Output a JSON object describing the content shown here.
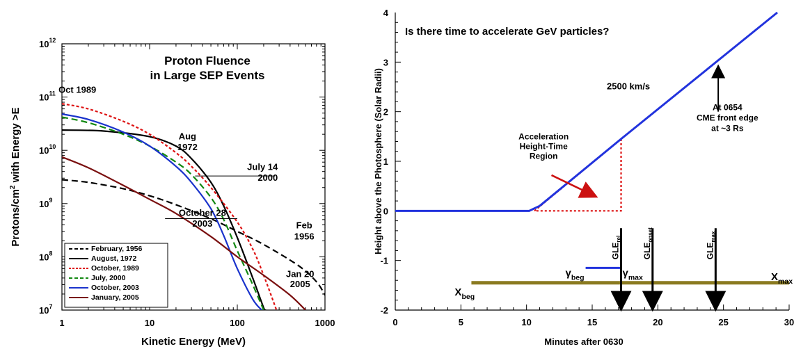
{
  "chart_data": [
    {
      "type": "line",
      "title": "Proton Fluence\nin Large SEP Events",
      "xlabel": "Kinetic Energy (MeV)",
      "ylabel": "Protons/cm² with Energy >E",
      "xscale": "log",
      "yscale": "log",
      "xlim": [
        1,
        1000
      ],
      "ylim": [
        10000000,
        1000000000000
      ],
      "x_ticks": [
        {
          "v": 1,
          "label": "1"
        },
        {
          "v": 10,
          "label": "10"
        },
        {
          "v": 100,
          "label": "100"
        },
        {
          "v": 1000,
          "label": "1000"
        }
      ],
      "y_ticks": [
        {
          "v": 10000000,
          "base": "10",
          "exp": "7"
        },
        {
          "v": 100000000,
          "base": "10",
          "exp": "8"
        },
        {
          "v": 1000000000,
          "base": "10",
          "exp": "9"
        },
        {
          "v": 10000000000,
          "base": "10",
          "exp": "10"
        },
        {
          "v": 100000000000,
          "base": "10",
          "exp": "11"
        },
        {
          "v": 1000000000000,
          "base": "10",
          "exp": "12"
        }
      ],
      "legend_position": "bottom-left",
      "series": [
        {
          "name": "February, 1956",
          "color": "#000000",
          "dash": "dash",
          "x": [
            1,
            2,
            5,
            10,
            20,
            50,
            100,
            200,
            500,
            800,
            1000
          ],
          "y": [
            2800000000,
            2500000000,
            1900000000,
            1400000000,
            950000000,
            520000000,
            300000000,
            170000000,
            68000000,
            34000000,
            19000000
          ]
        },
        {
          "name": "August, 1972",
          "color": "#000000",
          "dash": "solid",
          "x": [
            1,
            3,
            10,
            20,
            30,
            50,
            70,
            100,
            150,
            200,
            210
          ],
          "y": [
            24000000000,
            23000000000,
            18000000000,
            12000000000,
            7000000000,
            2500000000,
            900000000,
            230000000,
            40000000,
            11000000,
            10000000
          ]
        },
        {
          "name": "October, 1989",
          "color": "#dd1111",
          "dash": "dot",
          "x": [
            1,
            2,
            5,
            10,
            20,
            30,
            50,
            100,
            150,
            200,
            280
          ],
          "y": [
            75000000000,
            60000000000,
            35000000000,
            20000000000,
            9000000000,
            5000000000,
            2000000000,
            450000000,
            140000000,
            45000000,
            10000000
          ]
        },
        {
          "name": "July, 2000",
          "color": "#118811",
          "dash": "dash",
          "x": [
            1,
            2,
            5,
            10,
            20,
            30,
            50,
            70,
            100,
            150,
            200
          ],
          "y": [
            42000000000,
            33000000000,
            20000000000,
            12000000000,
            6000000000,
            3500000000,
            1300000000,
            500000000,
            130000000,
            30000000,
            10000000
          ]
        },
        {
          "name": "October, 2003",
          "color": "#1a33cc",
          "dash": "solid",
          "x": [
            1,
            2,
            5,
            10,
            20,
            30,
            50,
            70,
            100,
            150,
            190
          ],
          "y": [
            48000000000,
            38000000000,
            22000000000,
            12000000000,
            5000000000,
            2500000000,
            800000000,
            250000000,
            60000000,
            16000000,
            10000000
          ]
        },
        {
          "name": "January, 2005",
          "color": "#7a1010",
          "dash": "solid",
          "x": [
            1,
            2,
            5,
            10,
            20,
            50,
            100,
            200,
            400,
            600
          ],
          "y": [
            7500000000,
            4700000000,
            2200000000,
            1200000000,
            650000000,
            240000000,
            100000000,
            45000000,
            19000000,
            10000000
          ]
        }
      ],
      "annotations": [
        {
          "text": "Oct 1989",
          "x": 1.5,
          "y": 120000000000
        },
        {
          "text": "Aug",
          "x": 27,
          "y": 16000000000
        },
        {
          "text": "1972",
          "x": 27,
          "y": 10000000000
        },
        {
          "text": "July 14",
          "x": 290,
          "y": 4300000000
        },
        {
          "text": "2000",
          "x": 290,
          "y": 2700000000
        },
        {
          "text": "October 28",
          "x": 40,
          "y": 590000000
        },
        {
          "text": "2003",
          "x": 40,
          "y": 370000000
        },
        {
          "text": "Feb",
          "x": 580,
          "y": 340000000
        },
        {
          "text": "1956",
          "x": 580,
          "y": 210000000
        },
        {
          "text": "Jan 20",
          "x": 520,
          "y": 42000000
        },
        {
          "text": "2005",
          "x": 520,
          "y": 27000000
        }
      ]
    },
    {
      "type": "line",
      "title": "Is there time to accelerate GeV particles?",
      "xlabel": "Minutes after 0630",
      "ylabel": "Height above the Photosphere (Solar Radii)",
      "xlim": [
        0,
        30
      ],
      "ylim": [
        -2,
        4
      ],
      "x_ticks": [
        "0",
        "5",
        "10",
        "15",
        "20",
        "25",
        "30"
      ],
      "y_ticks": [
        "-2",
        "-1",
        "0",
        "1",
        "2",
        "3",
        "4"
      ],
      "series": [
        {
          "name": "height-time",
          "color": "#2233dd",
          "x": [
            0,
            10.2,
            11,
            17.2,
            29.1
          ],
          "y": [
            0,
            0,
            0.1,
            1.45,
            4.0
          ]
        }
      ],
      "region": {
        "color": "#dd1111",
        "x": [
          10.6,
          17.2,
          17.2,
          10.6
        ],
        "y": [
          0,
          1.45,
          0,
          0
        ]
      },
      "bars": [
        {
          "name": "gamma",
          "color": "#2233dd",
          "x": [
            14.5,
            17.2
          ],
          "y": -1.15,
          "label_start": "γbeg",
          "label_end": "γmax"
        },
        {
          "name": "xray",
          "color": "#8a7a20",
          "x": [
            5.8,
            30
          ],
          "y": -1.45,
          "label_start": "Xbeg",
          "label_end": "Xmax"
        }
      ],
      "events": [
        {
          "label": "GLE",
          "sub": "rel",
          "x": 17.2
        },
        {
          "label": "GLE",
          "sub": "onset",
          "x": 19.6
        },
        {
          "label": "GLE",
          "sub": "max",
          "x": 24.4
        }
      ],
      "annotations": {
        "speed": "2500 km/s",
        "region_label": [
          "Acceleration",
          "Height-Time",
          "Region"
        ],
        "cme_label": [
          "At 0654",
          "CME front edge",
          "at ~3 Rs"
        ]
      }
    }
  ]
}
